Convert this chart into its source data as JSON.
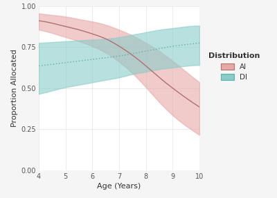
{
  "title": "",
  "xlabel": "Age (Years)",
  "ylabel": "Proportion Allocated",
  "xlim": [
    4,
    10
  ],
  "ylim": [
    0.0,
    1.0
  ],
  "xticks": [
    4,
    5,
    6,
    7,
    8,
    9,
    10
  ],
  "yticks": [
    0.0,
    0.25,
    0.5,
    0.75,
    1.0
  ],
  "AI_line_color": "#b07070",
  "AI_fill_color": "#e8a8a8",
  "DI_line_color": "#5aadaa",
  "DI_fill_color": "#88ccc9",
  "background_color": "#f5f5f5",
  "panel_color": "#ffffff",
  "grid_color": "#e8e8e8",
  "ai_line_x": [
    4,
    4.5,
    5,
    5.5,
    6,
    6.5,
    7,
    7.5,
    8,
    8.5,
    9,
    9.5,
    10
  ],
  "ai_line_y": [
    0.91,
    0.895,
    0.875,
    0.855,
    0.83,
    0.8,
    0.755,
    0.7,
    0.635,
    0.565,
    0.5,
    0.44,
    0.385
  ],
  "ai_upper_y": [
    0.955,
    0.945,
    0.935,
    0.92,
    0.905,
    0.885,
    0.855,
    0.82,
    0.775,
    0.725,
    0.665,
    0.6,
    0.535
  ],
  "ai_lower_y": [
    0.855,
    0.835,
    0.81,
    0.785,
    0.755,
    0.715,
    0.66,
    0.59,
    0.505,
    0.415,
    0.335,
    0.27,
    0.215
  ],
  "di_line_x": [
    4,
    4.5,
    5,
    5.5,
    6,
    6.5,
    7,
    7.5,
    8,
    8.5,
    9,
    9.5,
    10
  ],
  "di_line_y": [
    0.635,
    0.645,
    0.655,
    0.665,
    0.675,
    0.685,
    0.695,
    0.71,
    0.725,
    0.74,
    0.755,
    0.765,
    0.775
  ],
  "di_upper_y": [
    0.775,
    0.78,
    0.785,
    0.79,
    0.795,
    0.8,
    0.81,
    0.825,
    0.84,
    0.855,
    0.865,
    0.875,
    0.88
  ],
  "di_lower_y": [
    0.465,
    0.485,
    0.505,
    0.52,
    0.535,
    0.55,
    0.565,
    0.585,
    0.6,
    0.615,
    0.625,
    0.635,
    0.64
  ],
  "legend_title": "Distribution",
  "legend_AI": "AI",
  "legend_DI": "DI"
}
